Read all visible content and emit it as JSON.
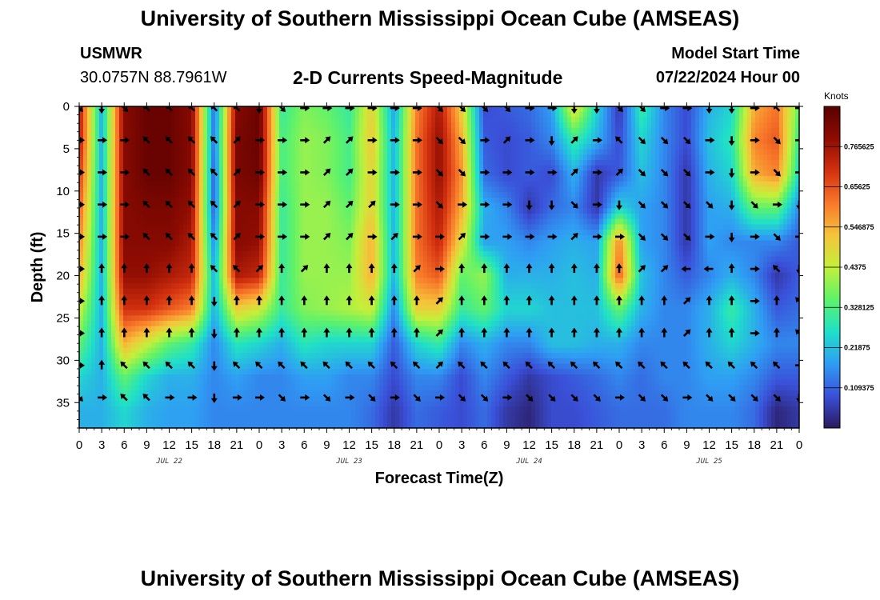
{
  "header": {
    "title": "University of Southern Mississippi Ocean Cube (AMSEAS)",
    "station": "USMWR",
    "coords": "30.0757N  88.7961W",
    "subtitle": "2-D Currents Speed-Magnitude",
    "start_label": "Model Start Time",
    "start_value": "07/22/2024 Hour 00"
  },
  "footer": {
    "title": "University of Southern Mississippi Ocean Cube (AMSEAS)"
  },
  "chart_data": {
    "type": "heatmap",
    "title": "2-D Currents Speed-Magnitude",
    "xlabel": "Forecast Time(Z)",
    "ylabel": "Depth (ft)",
    "xlim": [
      0,
      96
    ],
    "ylim": [
      0,
      38
    ],
    "y_inverted": true,
    "x_ticks": [
      0,
      3,
      6,
      9,
      12,
      15,
      18,
      21,
      24,
      27,
      30,
      33,
      36,
      39,
      42,
      45,
      48,
      51,
      54,
      57,
      60,
      63,
      66,
      69,
      72,
      75,
      78,
      81,
      84,
      87,
      90,
      93,
      96
    ],
    "x_tick_labels": [
      "0",
      "3",
      "6",
      "9",
      "12",
      "15",
      "18",
      "21",
      "0",
      "3",
      "6",
      "9",
      "12",
      "15",
      "18",
      "21",
      "0",
      "3",
      "6",
      "9",
      "12",
      "15",
      "18",
      "21",
      "0",
      "3",
      "6",
      "9",
      "12",
      "15",
      "18",
      "21",
      "0"
    ],
    "y_ticks": [
      0,
      5,
      10,
      15,
      20,
      25,
      30,
      35
    ],
    "y_tick_labels": [
      "0",
      "5",
      "10",
      "15",
      "20",
      "25",
      "30",
      "35"
    ],
    "date_labels": [
      {
        "x": 12,
        "label": "JUL 22"
      },
      {
        "x": 36,
        "label": "JUL 23"
      },
      {
        "x": 60,
        "label": "JUL 24"
      },
      {
        "x": 84,
        "label": "JUL 25"
      }
    ],
    "colorbar": {
      "unit": "Knots",
      "min": 0.0,
      "max": 0.875,
      "ticks": [
        0.109375,
        0.21875,
        0.328125,
        0.4375,
        0.546875,
        0.65625,
        0.765625
      ],
      "tick_labels": [
        "0.109375",
        "0.21875",
        "0.328125",
        "0.4375",
        "0.546875",
        "0.65625",
        "0.765625"
      ],
      "colors": [
        "#2a1a5e",
        "#3a50d8",
        "#2f9df4",
        "#1fe0c8",
        "#5ef26a",
        "#c3f03a",
        "#f5c43a",
        "#f8782a",
        "#d3300f",
        "#8e0c02",
        "#5a0000"
      ]
    },
    "times": [
      0,
      3,
      6,
      9,
      12,
      15,
      18,
      21,
      24,
      27,
      30,
      33,
      36,
      39,
      42,
      45,
      48,
      51,
      54,
      57,
      60,
      63,
      66,
      69,
      72,
      75,
      78,
      81,
      84,
      87,
      90,
      93,
      96
    ],
    "depths": [
      0,
      4,
      8,
      12,
      16,
      20,
      24,
      28,
      32,
      36
    ],
    "speed": [
      [
        0.75,
        0.2,
        0.8,
        0.85,
        0.85,
        0.8,
        0.12,
        0.8,
        0.85,
        0.3,
        0.38,
        0.35,
        0.3,
        0.5,
        0.18,
        0.6,
        0.75,
        0.5,
        0.08,
        0.1,
        0.12,
        0.18,
        0.5,
        0.25,
        0.05,
        0.3,
        0.15,
        0.08,
        0.2,
        0.25,
        0.55,
        0.62,
        0.35
      ],
      [
        0.75,
        0.2,
        0.8,
        0.85,
        0.85,
        0.8,
        0.12,
        0.82,
        0.85,
        0.32,
        0.4,
        0.38,
        0.32,
        0.52,
        0.2,
        0.62,
        0.78,
        0.55,
        0.1,
        0.08,
        0.1,
        0.15,
        0.3,
        0.2,
        0.08,
        0.25,
        0.15,
        0.08,
        0.22,
        0.28,
        0.6,
        0.65,
        0.3
      ],
      [
        0.7,
        0.2,
        0.8,
        0.85,
        0.85,
        0.8,
        0.1,
        0.82,
        0.84,
        0.32,
        0.4,
        0.38,
        0.32,
        0.5,
        0.2,
        0.62,
        0.78,
        0.58,
        0.12,
        0.08,
        0.1,
        0.08,
        0.2,
        0.05,
        0.1,
        0.22,
        0.15,
        0.05,
        0.2,
        0.25,
        0.55,
        0.6,
        0.25
      ],
      [
        0.65,
        0.2,
        0.8,
        0.82,
        0.82,
        0.78,
        0.1,
        0.8,
        0.8,
        0.3,
        0.4,
        0.4,
        0.35,
        0.5,
        0.2,
        0.62,
        0.75,
        0.55,
        0.2,
        0.15,
        0.05,
        0.12,
        0.15,
        0.05,
        0.25,
        0.18,
        0.15,
        0.05,
        0.18,
        0.2,
        0.35,
        0.35,
        0.15
      ],
      [
        0.6,
        0.2,
        0.8,
        0.8,
        0.8,
        0.75,
        0.15,
        0.8,
        0.78,
        0.3,
        0.4,
        0.4,
        0.38,
        0.55,
        0.2,
        0.62,
        0.72,
        0.48,
        0.18,
        0.18,
        0.15,
        0.18,
        0.2,
        0.18,
        0.6,
        0.18,
        0.15,
        0.05,
        0.18,
        0.15,
        0.15,
        0.15,
        0.1
      ],
      [
        0.55,
        0.2,
        0.78,
        0.78,
        0.75,
        0.72,
        0.2,
        0.75,
        0.72,
        0.3,
        0.4,
        0.4,
        0.4,
        0.55,
        0.2,
        0.6,
        0.65,
        0.35,
        0.4,
        0.2,
        0.2,
        0.2,
        0.22,
        0.2,
        0.65,
        0.22,
        0.15,
        0.1,
        0.15,
        0.2,
        0.15,
        0.05,
        0.1
      ],
      [
        0.45,
        0.2,
        0.7,
        0.7,
        0.65,
        0.6,
        0.2,
        0.5,
        0.45,
        0.3,
        0.38,
        0.4,
        0.42,
        0.45,
        0.15,
        0.5,
        0.5,
        0.3,
        0.35,
        0.25,
        0.25,
        0.22,
        0.22,
        0.22,
        0.35,
        0.2,
        0.15,
        0.15,
        0.2,
        0.3,
        0.2,
        0.1,
        0.12
      ],
      [
        0.35,
        0.2,
        0.55,
        0.45,
        0.35,
        0.3,
        0.15,
        0.28,
        0.25,
        0.2,
        0.28,
        0.25,
        0.25,
        0.25,
        0.1,
        0.25,
        0.3,
        0.15,
        0.2,
        0.15,
        0.15,
        0.22,
        0.22,
        0.2,
        0.2,
        0.15,
        0.15,
        0.15,
        0.2,
        0.25,
        0.2,
        0.15,
        0.15
      ],
      [
        0.25,
        0.2,
        0.35,
        0.25,
        0.2,
        0.2,
        0.15,
        0.18,
        0.15,
        0.15,
        0.18,
        0.18,
        0.15,
        0.15,
        0.08,
        0.15,
        0.15,
        0.08,
        0.15,
        0.1,
        0.05,
        0.08,
        0.1,
        0.12,
        0.15,
        0.12,
        0.15,
        0.15,
        0.18,
        0.18,
        0.15,
        0.1,
        0.1
      ],
      [
        0.2,
        0.2,
        0.25,
        0.2,
        0.18,
        0.18,
        0.15,
        0.15,
        0.15,
        0.15,
        0.15,
        0.15,
        0.15,
        0.12,
        0.05,
        0.12,
        0.1,
        0.08,
        0.12,
        0.05,
        0.02,
        0.08,
        0.08,
        0.1,
        0.12,
        0.12,
        0.12,
        0.15,
        0.15,
        0.15,
        0.12,
        0.02,
        0.05
      ]
    ],
    "arrow_times": [
      0,
      3,
      6,
      9,
      12,
      15,
      18,
      21,
      24,
      27,
      30,
      33,
      36,
      39,
      42,
      45,
      48,
      51,
      54,
      57,
      60,
      63,
      66,
      69,
      72,
      75,
      78,
      81,
      84,
      87,
      90,
      93,
      96
    ],
    "arrow_depths": [
      0,
      3.8,
      7.6,
      11.4,
      15.2,
      19,
      22.8,
      26.6,
      30.4,
      34.2
    ],
    "arrow_directions_deg": [
      [
        135,
        180,
        135,
        315,
        315,
        315,
        315,
        315,
        180,
        135,
        90,
        90,
        90,
        90,
        90,
        90,
        135,
        135,
        135,
        135,
        90,
        90,
        180,
        180,
        135,
        135,
        90,
        90,
        180,
        180,
        90,
        315,
        90
      ],
      [
        90,
        90,
        90,
        315,
        315,
        315,
        315,
        45,
        90,
        90,
        90,
        45,
        45,
        90,
        90,
        90,
        135,
        135,
        90,
        45,
        90,
        180,
        45,
        90,
        315,
        135,
        135,
        135,
        90,
        180,
        90,
        135,
        90
      ],
      [
        90,
        90,
        90,
        315,
        315,
        315,
        315,
        45,
        90,
        90,
        90,
        45,
        45,
        90,
        90,
        90,
        135,
        135,
        90,
        90,
        90,
        90,
        45,
        90,
        45,
        135,
        135,
        135,
        90,
        180,
        90,
        135,
        90
      ],
      [
        90,
        90,
        90,
        315,
        315,
        315,
        315,
        45,
        90,
        90,
        90,
        45,
        45,
        45,
        90,
        90,
        135,
        90,
        90,
        90,
        180,
        180,
        135,
        90,
        180,
        135,
        135,
        135,
        135,
        180,
        135,
        90,
        180
      ],
      [
        90,
        90,
        90,
        315,
        315,
        315,
        315,
        45,
        90,
        90,
        90,
        45,
        45,
        90,
        45,
        90,
        90,
        45,
        90,
        90,
        90,
        90,
        45,
        90,
        90,
        135,
        135,
        135,
        90,
        180,
        90,
        135,
        90
      ],
      [
        90,
        0,
        0,
        0,
        0,
        0,
        315,
        315,
        45,
        0,
        45,
        0,
        0,
        0,
        0,
        45,
        90,
        0,
        0,
        0,
        0,
        0,
        0,
        0,
        0,
        45,
        45,
        270,
        270,
        0,
        90,
        315,
        180
      ],
      [
        90,
        0,
        0,
        0,
        0,
        0,
        180,
        0,
        0,
        0,
        0,
        0,
        0,
        0,
        0,
        0,
        45,
        0,
        0,
        0,
        0,
        0,
        0,
        0,
        0,
        0,
        0,
        45,
        0,
        0,
        90,
        0,
        315
      ],
      [
        90,
        0,
        0,
        0,
        0,
        0,
        180,
        0,
        0,
        0,
        0,
        0,
        0,
        0,
        0,
        0,
        45,
        0,
        0,
        0,
        0,
        0,
        0,
        0,
        0,
        0,
        0,
        45,
        0,
        0,
        90,
        0,
        315
      ],
      [
        90,
        0,
        315,
        315,
        315,
        315,
        180,
        315,
        315,
        315,
        315,
        315,
        315,
        315,
        315,
        315,
        45,
        315,
        315,
        315,
        315,
        315,
        315,
        315,
        315,
        315,
        315,
        315,
        315,
        315,
        315,
        315,
        90
      ],
      [
        135,
        90,
        315,
        315,
        90,
        90,
        180,
        90,
        90,
        135,
        90,
        135,
        90,
        135,
        90,
        135,
        90,
        135,
        135,
        90,
        135,
        135,
        135,
        135,
        90,
        135,
        135,
        90,
        135,
        135,
        135,
        135,
        180
      ]
    ]
  }
}
